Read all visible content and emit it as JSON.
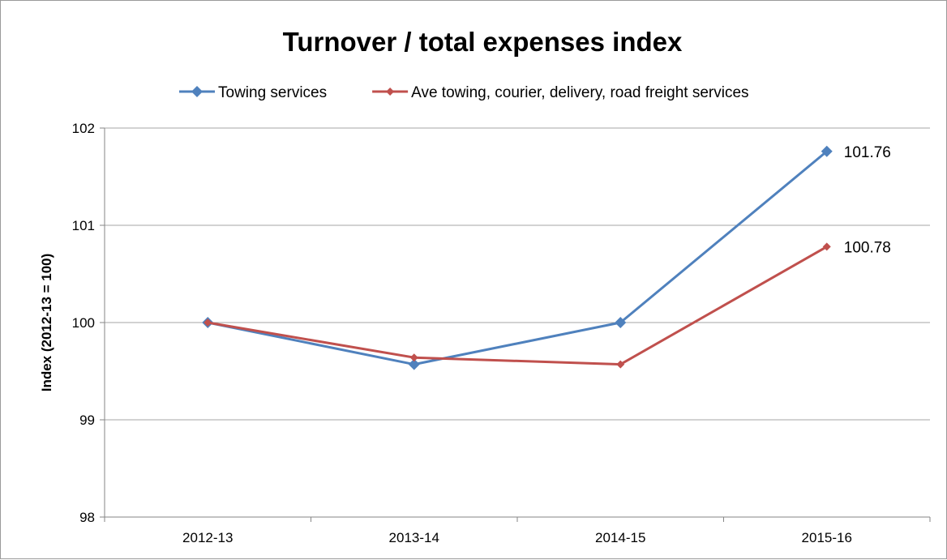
{
  "chart_data": {
    "type": "line",
    "title": "Turnover / total expenses index",
    "xlabel": "",
    "ylabel": "Index (2012-13 = 100)",
    "categories": [
      "2012-13",
      "2013-14",
      "2014-15",
      "2015-16"
    ],
    "ylim": [
      98,
      102
    ],
    "yticks": [
      98,
      99,
      100,
      101,
      102
    ],
    "grid": true,
    "legend_position": "top",
    "series": [
      {
        "name": "Towing services",
        "color": "#4f81bd",
        "marker": "diamond",
        "values": [
          100.0,
          99.57,
          100.0,
          101.76
        ],
        "end_label": "101.76"
      },
      {
        "name": "Ave towing, courier, delivery, road freight services",
        "color": "#c0504d",
        "marker": "diamond",
        "values": [
          100.0,
          99.64,
          99.57,
          100.78
        ],
        "end_label": "100.78"
      }
    ]
  }
}
